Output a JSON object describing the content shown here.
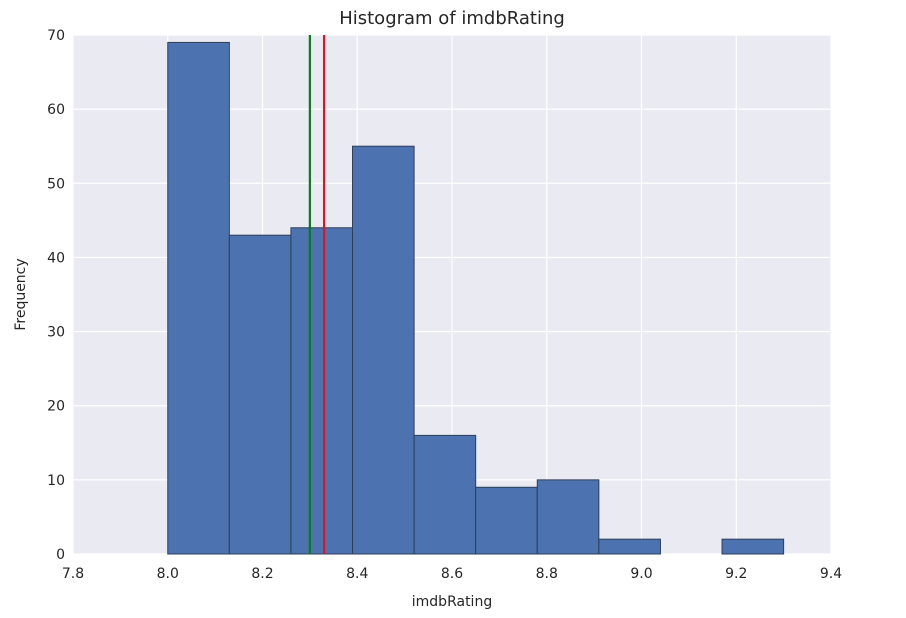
{
  "chart_data": {
    "type": "bar",
    "title": "Histogram of imdbRating",
    "xlabel": "imdbRating",
    "ylabel": "Frequency",
    "xlim": [
      7.8,
      9.4
    ],
    "ylim": [
      0,
      70
    ],
    "xticks": [
      "7.8",
      "8.0",
      "8.2",
      "8.4",
      "8.6",
      "8.8",
      "9.0",
      "9.2",
      "9.4"
    ],
    "yticks": [
      "0",
      "10",
      "20",
      "30",
      "40",
      "50",
      "60",
      "70"
    ],
    "grid": true,
    "bins": [
      {
        "start": 8.0,
        "end": 8.13,
        "count": 69
      },
      {
        "start": 8.13,
        "end": 8.26,
        "count": 43
      },
      {
        "start": 8.26,
        "end": 8.39,
        "count": 44
      },
      {
        "start": 8.39,
        "end": 8.52,
        "count": 55
      },
      {
        "start": 8.52,
        "end": 8.65,
        "count": 16
      },
      {
        "start": 8.65,
        "end": 8.78,
        "count": 9
      },
      {
        "start": 8.78,
        "end": 8.91,
        "count": 10
      },
      {
        "start": 8.91,
        "end": 9.04,
        "count": 2
      },
      {
        "start": 9.04,
        "end": 9.17,
        "count": 0
      },
      {
        "start": 9.17,
        "end": 9.3,
        "count": 2
      }
    ],
    "vlines": [
      {
        "x": 8.3,
        "color": "#0a7a1f"
      },
      {
        "x": 8.33,
        "color": "#e8101c"
      }
    ],
    "bar_color": "#4c72b0",
    "bar_edge_color": "#2e3f58",
    "background_color": "#eaeaf2",
    "grid_color": "#ffffff"
  }
}
